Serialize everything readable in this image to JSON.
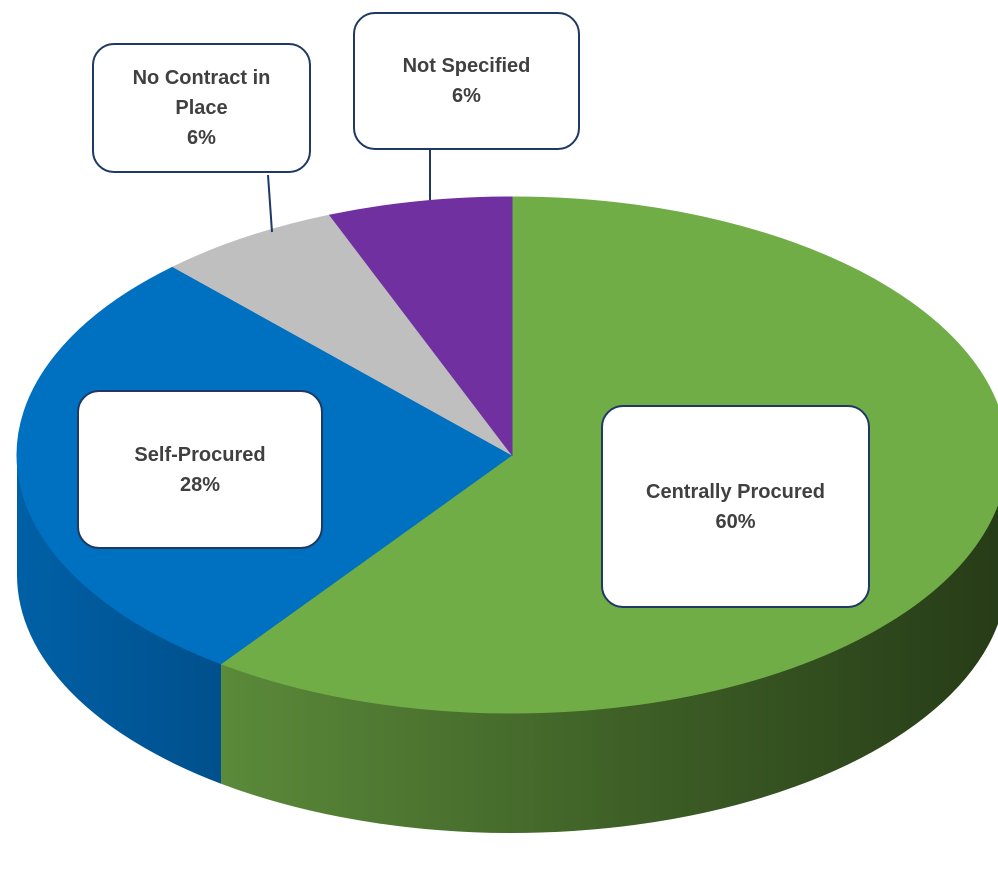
{
  "chart_data": {
    "type": "pie",
    "categories": [
      "Centrally Procured",
      "Self-Procured",
      "No Contract in Place",
      "Not Specified"
    ],
    "values": [
      60,
      28,
      6,
      6
    ],
    "value_labels": [
      "60%",
      "28%",
      "6%",
      "6%"
    ],
    "colors": [
      "#70ad47",
      "#0070c0",
      "#bfbfbf",
      "#7030a0"
    ]
  }
}
